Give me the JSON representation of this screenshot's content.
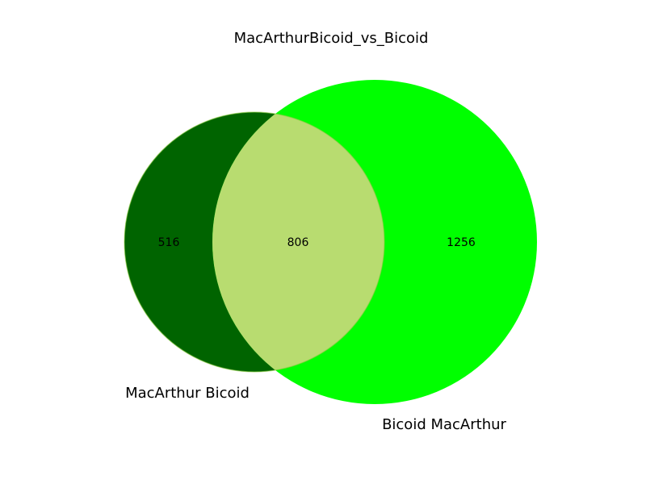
{
  "title": "MacArthurBicoid_vs_Bicoid",
  "sets": [
    {
      "name": "MacArthur Bicoid",
      "color": "#006400"
    },
    {
      "name": "Bicoid MacArthur",
      "color": "#00ff00"
    }
  ],
  "overlap_color": "#b8dc70",
  "regions": {
    "only_a": "516",
    "both": "806",
    "only_b": "1256"
  }
}
